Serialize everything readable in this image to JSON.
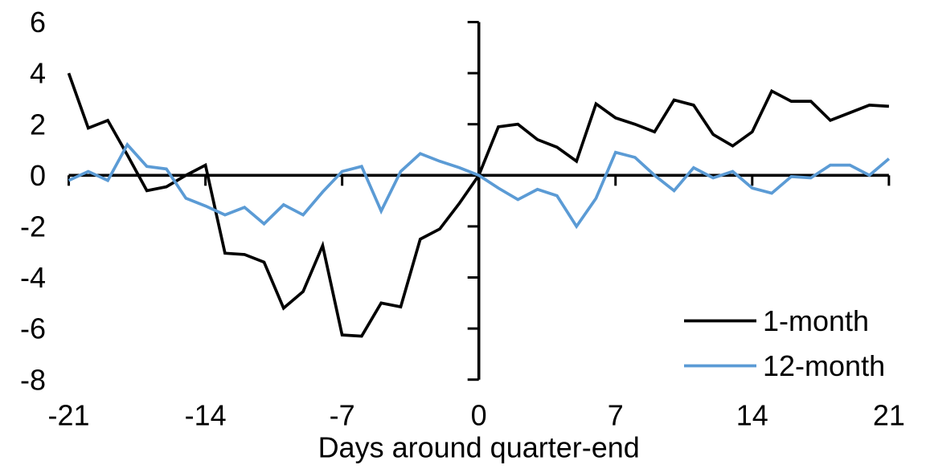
{
  "chart_data": {
    "type": "line",
    "title": "",
    "xlabel": "Days around quarter-end",
    "ylabel": "",
    "x": [
      -21,
      -20,
      -19,
      -18,
      -17,
      -16,
      -15,
      -14,
      -13,
      -12,
      -11,
      -10,
      -9,
      -8,
      -7,
      -6,
      -5,
      -4,
      -3,
      -2,
      -1,
      0,
      1,
      2,
      3,
      4,
      5,
      6,
      7,
      8,
      9,
      10,
      11,
      12,
      13,
      14,
      15,
      16,
      17,
      18,
      19,
      20,
      21
    ],
    "series": [
      {
        "name": "1-month",
        "color": "#000000",
        "values": [
          4.0,
          1.85,
          2.15,
          0.8,
          -0.6,
          -0.45,
          0.0,
          0.4,
          -3.05,
          -3.1,
          -3.4,
          -5.2,
          -4.55,
          -2.75,
          -6.25,
          -6.3,
          -5.0,
          -5.15,
          -2.5,
          -2.1,
          -1.1,
          0.0,
          1.9,
          2.0,
          1.4,
          1.1,
          0.55,
          2.8,
          2.25,
          2.0,
          1.7,
          2.95,
          2.75,
          1.6,
          1.15,
          1.7,
          3.3,
          2.9,
          2.9,
          2.15,
          2.45,
          2.75,
          2.7
        ]
      },
      {
        "name": "12-month",
        "color": "#5B9BD5",
        "values": [
          -0.2,
          0.15,
          -0.2,
          1.2,
          0.35,
          0.25,
          -0.9,
          -1.2,
          -1.55,
          -1.25,
          -1.9,
          -1.15,
          -1.55,
          -0.65,
          0.15,
          0.35,
          -1.4,
          0.15,
          0.85,
          0.55,
          0.3,
          0.0,
          -0.5,
          -0.95,
          -0.55,
          -0.8,
          -2.0,
          -0.9,
          0.9,
          0.7,
          0.0,
          -0.6,
          0.3,
          -0.1,
          0.15,
          -0.5,
          -0.7,
          -0.05,
          -0.1,
          0.4,
          0.4,
          0.0,
          0.65
        ]
      }
    ],
    "xticks": [
      -21,
      -14,
      -7,
      0,
      7,
      14,
      21
    ],
    "yticks": [
      -8,
      -6,
      -4,
      -2,
      0,
      2,
      4,
      6
    ],
    "xlim": [
      -21,
      21
    ],
    "ylim": [
      -8,
      6
    ],
    "grid": false,
    "legend_position": "inside-bottom-right",
    "axis_color": "#000000"
  }
}
